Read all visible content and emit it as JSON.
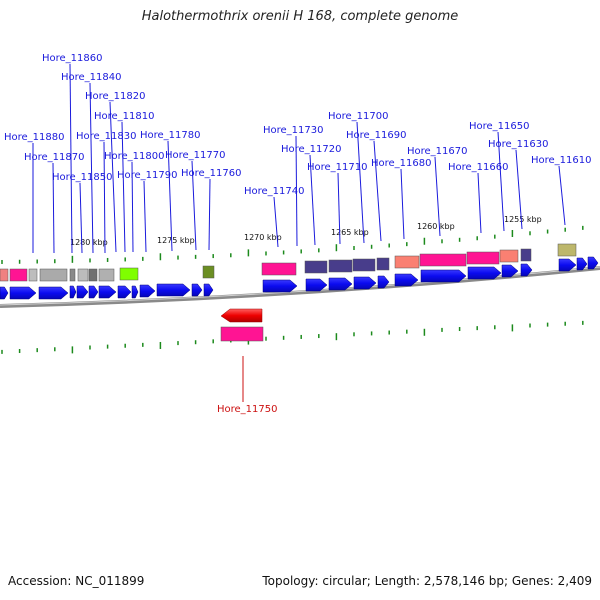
{
  "title": "Halothermothrix orenii H 168, complete genome",
  "footer": {
    "accession": "Accession: NC_011899",
    "summary": "Topology: circular; Length: 2,578,146 bp; Genes: 2,409"
  },
  "colors": {
    "label_blue": "#1a1adc",
    "label_red": "#cc1111",
    "arrow_blue": "#0b0bf0",
    "tick_green": "#1c8a1c",
    "backbone": "#8a8a8a"
  },
  "scale_labels": [
    "1280 kbp",
    "1275 kbp",
    "1270 kbp",
    "1265 kbp",
    "1260 kbp",
    "1255 kbp"
  ],
  "gene_labels": [
    {
      "text": "Hore_11880",
      "strand": "upper"
    },
    {
      "text": "Hore_11870",
      "strand": "upper"
    },
    {
      "text": "Hore_11860",
      "strand": "upper"
    },
    {
      "text": "Hore_11850",
      "strand": "upper"
    },
    {
      "text": "Hore_11840",
      "strand": "upper"
    },
    {
      "text": "Hore_11830",
      "strand": "upper"
    },
    {
      "text": "Hore_11820",
      "strand": "upper"
    },
    {
      "text": "Hore_11810",
      "strand": "upper"
    },
    {
      "text": "Hore_11800",
      "strand": "upper"
    },
    {
      "text": "Hore_11790",
      "strand": "upper"
    },
    {
      "text": "Hore_11780",
      "strand": "upper"
    },
    {
      "text": "Hore_11770",
      "strand": "upper"
    },
    {
      "text": "Hore_11760",
      "strand": "upper"
    },
    {
      "text": "Hore_11740",
      "strand": "upper"
    },
    {
      "text": "Hore_11730",
      "strand": "upper"
    },
    {
      "text": "Hore_11720",
      "strand": "upper"
    },
    {
      "text": "Hore_11710",
      "strand": "upper"
    },
    {
      "text": "Hore_11700",
      "strand": "upper"
    },
    {
      "text": "Hore_11690",
      "strand": "upper"
    },
    {
      "text": "Hore_11680",
      "strand": "upper"
    },
    {
      "text": "Hore_11670",
      "strand": "upper"
    },
    {
      "text": "Hore_11660",
      "strand": "upper"
    },
    {
      "text": "Hore_11650",
      "strand": "upper"
    },
    {
      "text": "Hore_11630",
      "strand": "upper"
    },
    {
      "text": "Hore_11610",
      "strand": "upper"
    },
    {
      "text": "Hore_11750",
      "strand": "lower"
    }
  ]
}
